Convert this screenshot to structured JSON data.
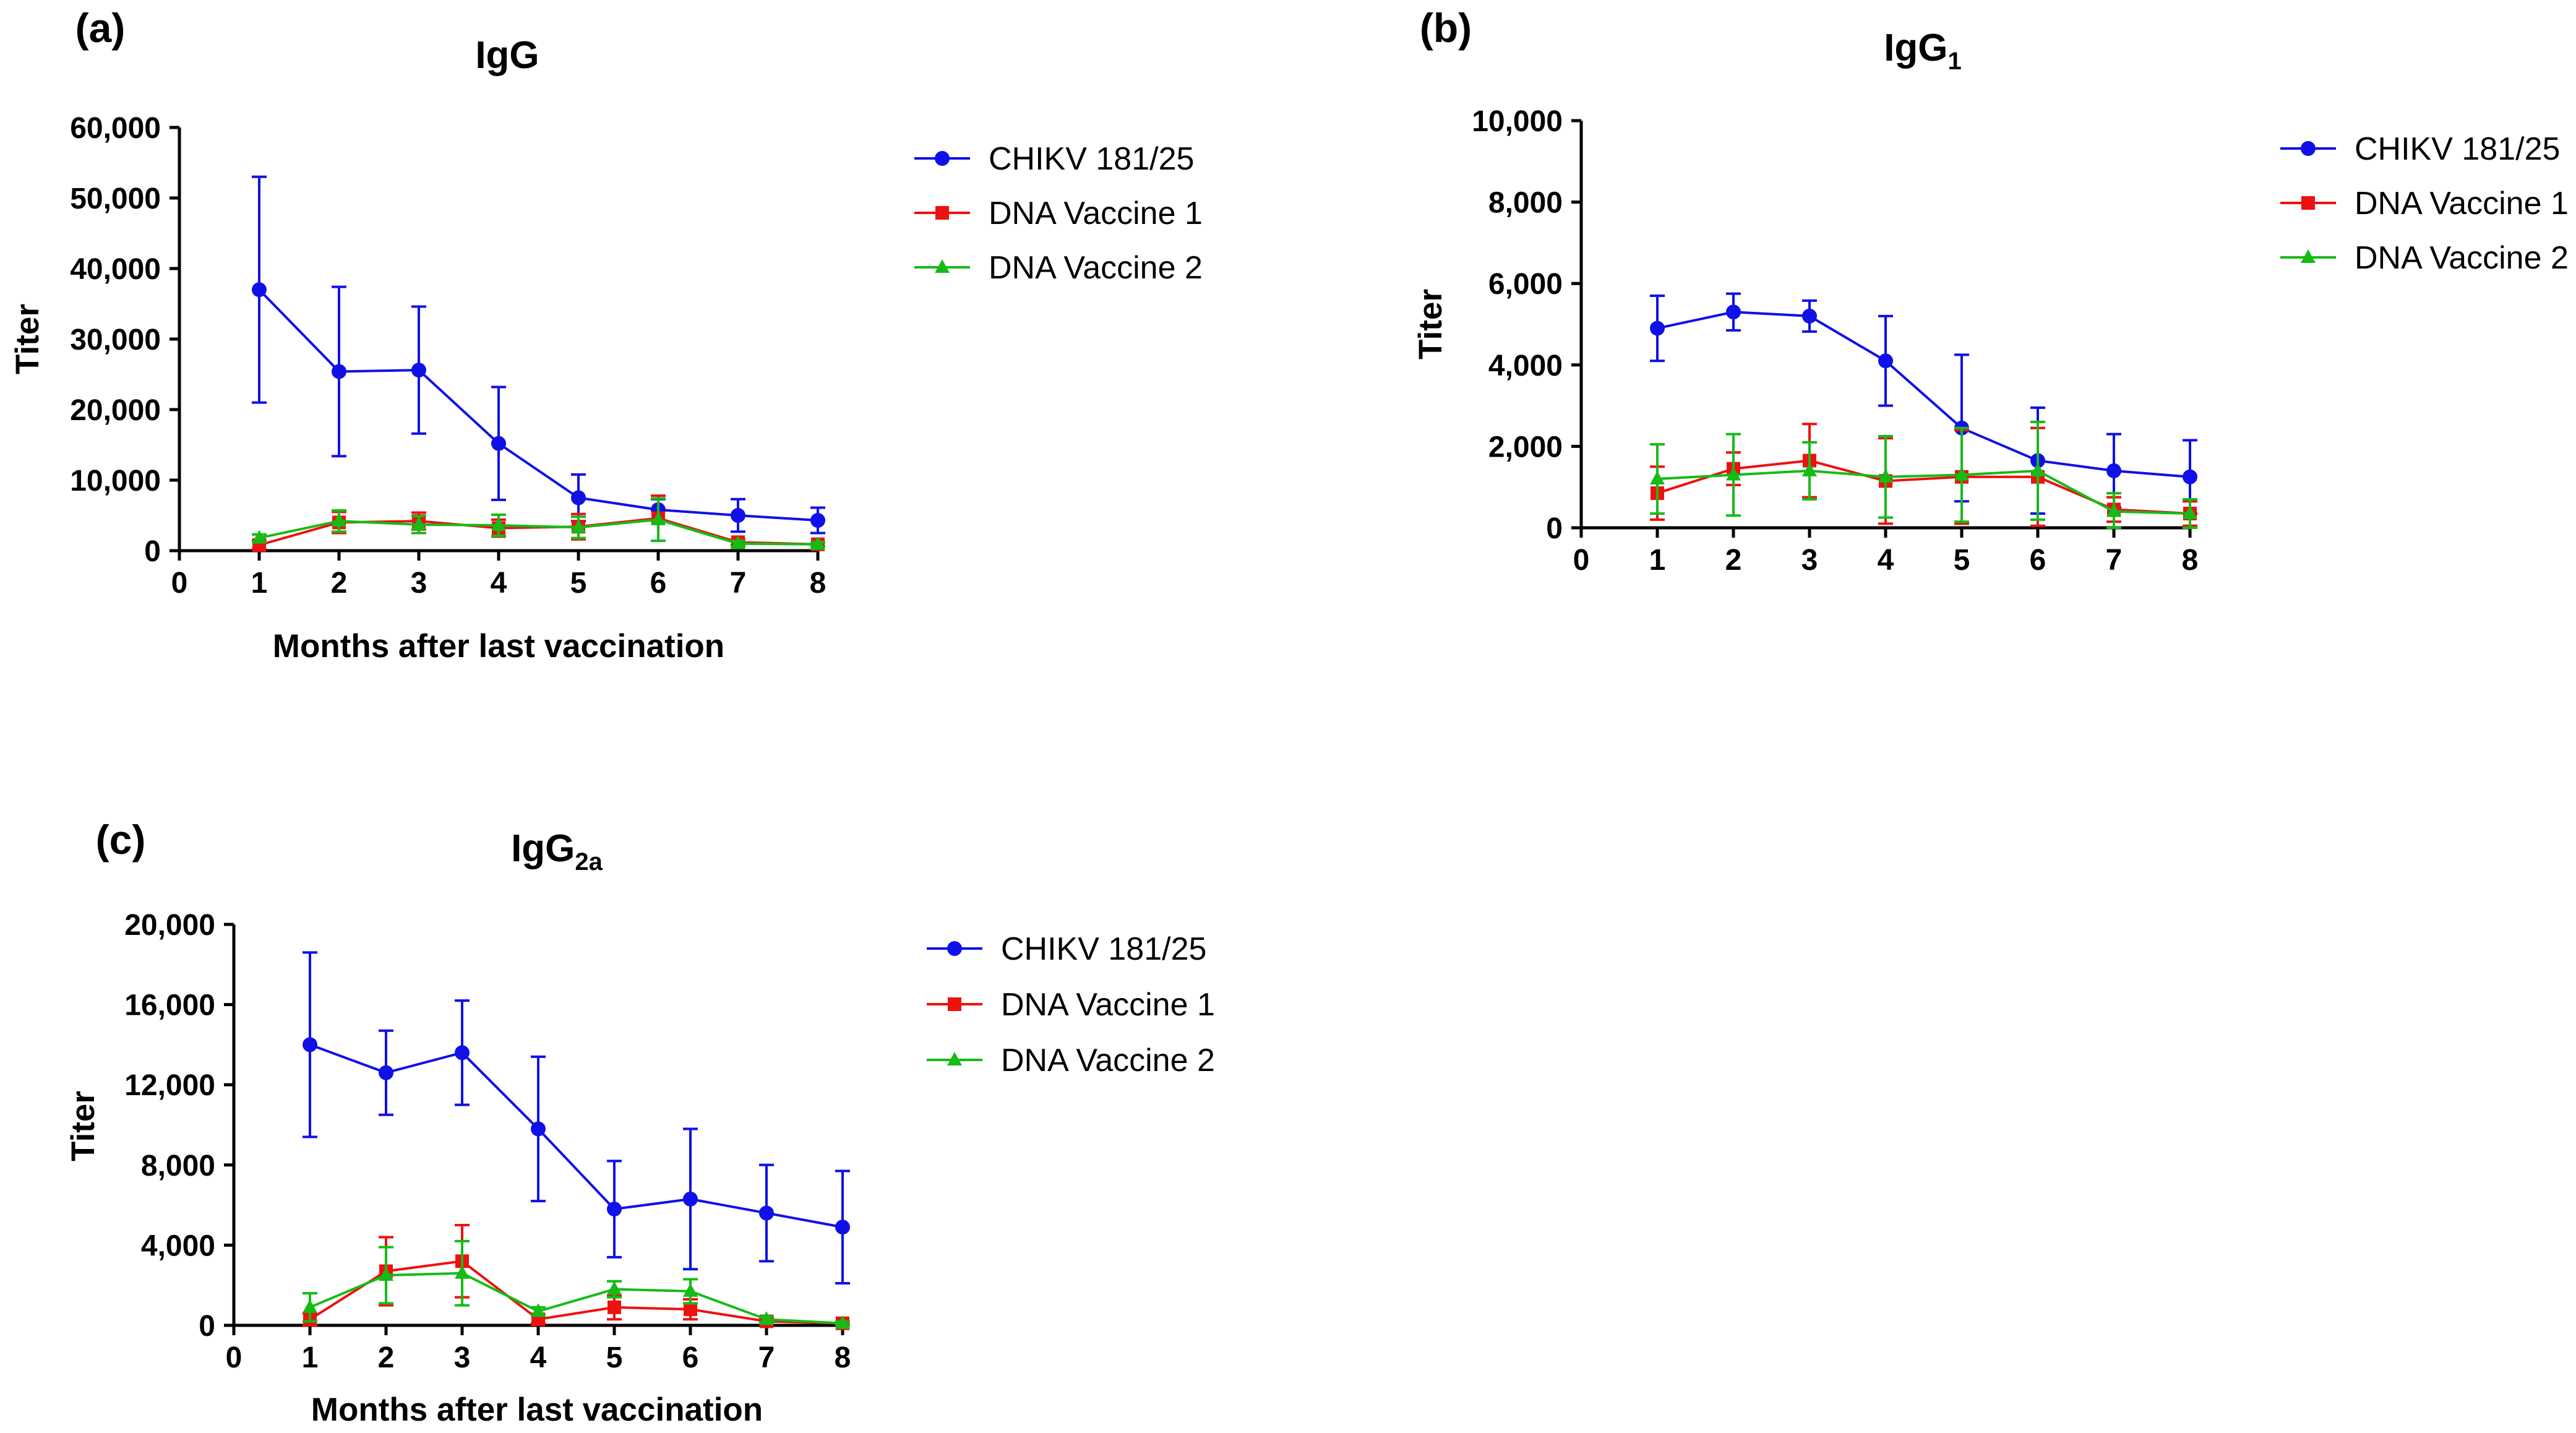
{
  "chart_data": [
    {
      "type": "line",
      "panel": "(a)",
      "title": "IgG",
      "title_sub": "",
      "xlabel": "Months after last vaccination",
      "ylabel": "Titer",
      "xlim": [
        0,
        8
      ],
      "ylim": [
        0,
        60000
      ],
      "x_ticks": [
        "0",
        "1",
        "2",
        "3",
        "4",
        "5",
        "6",
        "7",
        "8"
      ],
      "y_ticks": [
        "0",
        "10,000",
        "20,000",
        "30,000",
        "40,000",
        "50,000",
        "60,000"
      ],
      "x": [
        1,
        2,
        3,
        4,
        5,
        6,
        7,
        8
      ],
      "series": [
        {
          "name": "CHIKV 181/25",
          "color": "#1010e8",
          "marker": "circle",
          "values": [
            37000,
            25400,
            25600,
            15200,
            7500,
            5800,
            5000,
            4300
          ],
          "errors": [
            16000,
            12000,
            9000,
            8000,
            3300,
            1500,
            2300,
            1800
          ]
        },
        {
          "name": "DNA Vaccine 1",
          "color": "#ee1111",
          "marker": "square",
          "values": [
            800,
            4000,
            4200,
            3200,
            3400,
            4600,
            1200,
            900
          ],
          "errors": [
            600,
            1500,
            1200,
            1200,
            1800,
            3200,
            400,
            300
          ]
        },
        {
          "name": "DNA Vaccine 2",
          "color": "#16bb16",
          "marker": "triangle",
          "values": [
            1800,
            4200,
            3700,
            3600,
            3300,
            4400,
            1000,
            900
          ],
          "errors": [
            500,
            1500,
            1200,
            1500,
            1500,
            3000,
            400,
            300
          ]
        }
      ]
    },
    {
      "type": "line",
      "panel": "(b)",
      "title": "IgG",
      "title_sub": "1",
      "xlabel": "",
      "ylabel": "Titer",
      "xlim": [
        0,
        8
      ],
      "ylim": [
        0,
        10000
      ],
      "x_ticks": [
        "0",
        "1",
        "2",
        "3",
        "4",
        "5",
        "6",
        "7",
        "8"
      ],
      "y_ticks": [
        "0",
        "2,000",
        "4,000",
        "6,000",
        "8,000",
        "10,000"
      ],
      "x": [
        1,
        2,
        3,
        4,
        5,
        6,
        7,
        8
      ],
      "series": [
        {
          "name": "CHIKV 181/25",
          "color": "#1010e8",
          "marker": "circle",
          "values": [
            4900,
            5300,
            5200,
            4100,
            2450,
            1650,
            1400,
            1250
          ],
          "errors": [
            800,
            450,
            380,
            1100,
            1800,
            1300,
            900,
            900
          ]
        },
        {
          "name": "DNA Vaccine 1",
          "color": "#ee1111",
          "marker": "square",
          "values": [
            850,
            1450,
            1650,
            1150,
            1250,
            1250,
            450,
            350
          ],
          "errors": [
            650,
            400,
            900,
            1050,
            1150,
            1200,
            300,
            300
          ]
        },
        {
          "name": "DNA Vaccine 2",
          "color": "#16bb16",
          "marker": "triangle",
          "values": [
            1200,
            1300,
            1400,
            1250,
            1300,
            1400,
            400,
            350
          ],
          "errors": [
            850,
            1000,
            700,
            1000,
            1150,
            1200,
            450,
            350
          ]
        }
      ]
    },
    {
      "type": "line",
      "panel": "(c)",
      "title": "IgG",
      "title_sub": "2a",
      "xlabel": "Months after last vaccination",
      "ylabel": "Titer",
      "xlim": [
        0,
        8
      ],
      "ylim": [
        0,
        20000
      ],
      "x_ticks": [
        "0",
        "1",
        "2",
        "3",
        "4",
        "5",
        "6",
        "7",
        "8"
      ],
      "y_ticks": [
        "0",
        "4,000",
        "8,000",
        "12,000",
        "16,000",
        "20,000"
      ],
      "x": [
        1,
        2,
        3,
        4,
        5,
        6,
        7,
        8
      ],
      "series": [
        {
          "name": "CHIKV 181/25",
          "color": "#1010e8",
          "marker": "circle",
          "values": [
            14000,
            12600,
            13600,
            9800,
            5800,
            6300,
            5600,
            4900
          ],
          "errors": [
            4600,
            2100,
            2600,
            3600,
            2400,
            3500,
            2400,
            2800
          ]
        },
        {
          "name": "DNA Vaccine 1",
          "color": "#ee1111",
          "marker": "square",
          "values": [
            300,
            2700,
            3200,
            300,
            900,
            800,
            200,
            100
          ],
          "errors": [
            300,
            1700,
            1800,
            200,
            600,
            500,
            150,
            80
          ]
        },
        {
          "name": "DNA Vaccine 2",
          "color": "#16bb16",
          "marker": "triangle",
          "values": [
            900,
            2500,
            2600,
            700,
            1800,
            1700,
            300,
            100
          ],
          "errors": [
            700,
            1400,
            1600,
            200,
            400,
            600,
            150,
            80
          ]
        }
      ]
    }
  ]
}
